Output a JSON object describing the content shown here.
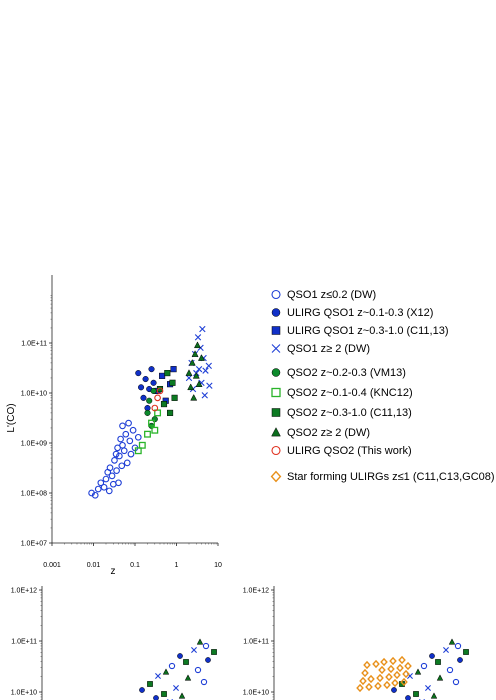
{
  "chart_data": [
    {
      "type": "scatter",
      "xscale": "log",
      "yscale": "log",
      "xlim": [
        0.001,
        10
      ],
      "ylim": [
        10000000.0,
        1000000000000.0
      ],
      "xlabel": "z",
      "ylabel": "L'(CO)",
      "xticks": [
        "0.001",
        "0.01",
        "0.1",
        "1",
        "10"
      ],
      "yticks": [
        "1.0E+07",
        "1.0E+08",
        "1.0E+09",
        "1.0E+10",
        "1.0E+11"
      ],
      "legend_position": "right",
      "series": [
        {
          "name": "QSO1 z≤0.2 (DW)",
          "marker": "open-circle",
          "color": "#1f3fd6",
          "points": [
            [
              0.009,
              100000000.0
            ],
            [
              0.011,
              90000000.0
            ],
            [
              0.013,
              120000000.0
            ],
            [
              0.015,
              160000000.0
            ],
            [
              0.018,
              130000000.0
            ],
            [
              0.02,
              190000000.0
            ],
            [
              0.022,
              260000000.0
            ],
            [
              0.024,
              110000000.0
            ],
            [
              0.025,
              320000000.0
            ],
            [
              0.028,
              220000000.0
            ],
            [
              0.03,
              150000000.0
            ],
            [
              0.032,
              450000000.0
            ],
            [
              0.035,
              600000000.0
            ],
            [
              0.036,
              280000000.0
            ],
            [
              0.038,
              800000000.0
            ],
            [
              0.04,
              160000000.0
            ],
            [
              0.042,
              550000000.0
            ],
            [
              0.045,
              1200000000.0
            ],
            [
              0.048,
              350000000.0
            ],
            [
              0.05,
              2200000000.0
            ],
            [
              0.05,
              900000000.0
            ],
            [
              0.055,
              700000000.0
            ],
            [
              0.06,
              1500000000.0
            ],
            [
              0.065,
              400000000.0
            ],
            [
              0.07,
              2500000000.0
            ],
            [
              0.075,
              1100000000.0
            ],
            [
              0.08,
              600000000.0
            ],
            [
              0.09,
              1800000000.0
            ],
            [
              0.1,
              800000000.0
            ],
            [
              0.12,
              1300000000.0
            ]
          ]
        },
        {
          "name": "ULIRG QSO1 z~0.1-0.3 (X12)",
          "marker": "filled-circle",
          "color": "#1030c8",
          "points": [
            [
              0.12,
              25000000000.0
            ],
            [
              0.14,
              13000000000.0
            ],
            [
              0.16,
              8000000000.0
            ],
            [
              0.18,
              19000000000.0
            ],
            [
              0.2,
              5000000000.0
            ],
            [
              0.22,
              12000000000.0
            ],
            [
              0.25,
              30000000000.0
            ],
            [
              0.28,
              16000000000.0
            ]
          ]
        },
        {
          "name": "ULIRG QSO1 z~0.3-1.0 (C11,13)",
          "marker": "filled-square",
          "color": "#1030c8",
          "points": [
            [
              0.35,
              11000000000.0
            ],
            [
              0.45,
              22000000000.0
            ],
            [
              0.55,
              7000000000.0
            ],
            [
              0.7,
              15000000000.0
            ],
            [
              0.85,
              30000000000.0
            ]
          ]
        },
        {
          "name": "QSO1 z≥ 2 (DW)",
          "marker": "cross",
          "color": "#1f3fd6",
          "points": [
            [
              2.0,
              20000000000.0
            ],
            [
              2.3,
              40000000000.0
            ],
            [
              2.5,
              12000000000.0
            ],
            [
              2.8,
              60000000000.0
            ],
            [
              3.0,
              25000000000.0
            ],
            [
              3.3,
              130000000000.0
            ],
            [
              3.5,
              30000000000.0
            ],
            [
              3.8,
              80000000000.0
            ],
            [
              4.0,
              16000000000.0
            ],
            [
              4.2,
              190000000000.0
            ],
            [
              4.5,
              50000000000.0
            ],
            [
              4.8,
              9000000000.0
            ],
            [
              5.0,
              28000000000.0
            ],
            [
              6.0,
              35000000000.0
            ],
            [
              6.2,
              14000000000.0
            ]
          ]
        },
        {
          "name": "QSO2 z~0.2-0.3 (VM13)",
          "marker": "filled-circle",
          "color": "#0c8a2c",
          "points": [
            [
              0.2,
              4000000000.0
            ],
            [
              0.22,
              7000000000.0
            ],
            [
              0.25,
              2200000000.0
            ],
            [
              0.28,
              11000000000.0
            ],
            [
              0.3,
              3000000000.0
            ]
          ]
        },
        {
          "name": "QSO2 z~0.1-0.4 (KNC12)",
          "marker": "open-square",
          "color": "#2ab42a",
          "points": [
            [
              0.12,
              700000000.0
            ],
            [
              0.15,
              900000000.0
            ],
            [
              0.2,
              1500000000.0
            ],
            [
              0.25,
              2500000000.0
            ],
            [
              0.3,
              1800000000.0
            ],
            [
              0.35,
              4000000000.0
            ]
          ]
        },
        {
          "name": "QSO2 z~0.3-1.0 (C11,13)",
          "marker": "filled-square",
          "color": "#0c7a22",
          "points": [
            [
              0.4,
              12000000000.0
            ],
            [
              0.5,
              6000000000.0
            ],
            [
              0.6,
              25000000000.0
            ],
            [
              0.7,
              4000000000.0
            ],
            [
              0.8,
              16000000000.0
            ],
            [
              0.9,
              8000000000.0
            ]
          ]
        },
        {
          "name": "QSO2 z≥ 2 (DW)",
          "marker": "filled-triangle",
          "color": "#0c6e1e",
          "points": [
            [
              2.0,
              25000000000.0
            ],
            [
              2.2,
              13000000000.0
            ],
            [
              2.4,
              40000000000.0
            ],
            [
              2.6,
              8000000000.0
            ],
            [
              2.8,
              60000000000.0
            ],
            [
              3.0,
              22000000000.0
            ],
            [
              3.2,
              90000000000.0
            ],
            [
              3.5,
              15000000000.0
            ],
            [
              4.0,
              50000000000.0
            ]
          ]
        },
        {
          "name": "ULIRG QSO2 (This work)",
          "marker": "open-circle",
          "color": "#e0301e",
          "points": [
            [
              0.3,
              5000000000.0
            ],
            [
              0.35,
              8000000000.0
            ],
            [
              0.4,
              11000000000.0
            ]
          ]
        },
        {
          "name": "Star forming ULIRGs z≤1 (C11,C13,GC08)",
          "marker": "open-diamond",
          "color": "#e8901a",
          "points": []
        }
      ]
    },
    {
      "type": "scatter",
      "xscale": "log",
      "yscale": "log",
      "ylim": [
        10000000.0,
        1000000000000.0
      ],
      "yticks": [
        "1.0E+12",
        "1.0E+11",
        "1.0E+10"
      ]
    },
    {
      "type": "scatter",
      "xscale": "log",
      "yscale": "log",
      "ylim": [
        10000000.0,
        1000000000000.0
      ],
      "yticks": [
        "1.0E+12",
        "1.0E+11",
        "1.0E+10"
      ]
    }
  ]
}
